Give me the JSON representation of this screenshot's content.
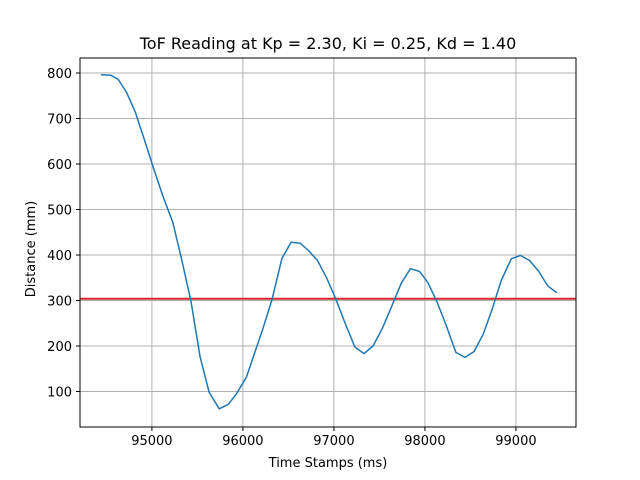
{
  "chart_data": {
    "type": "line",
    "title": "ToF Reading at Kp = 2.30, Ki = 0.25, Kd = 1.40",
    "xlabel": "Time Stamps (ms)",
    "ylabel": "Distance (mm)",
    "xlim": [
      94210,
      99660
    ],
    "ylim": [
      22,
      833
    ],
    "xticks": [
      95000,
      96000,
      97000,
      98000,
      99000
    ],
    "yticks": [
      100,
      200,
      300,
      400,
      500,
      600,
      700,
      800
    ],
    "grid": true,
    "series": [
      {
        "color": "#1f77b4",
        "x": [
          94440,
          94550,
          94630,
          94720,
          94820,
          94920,
          95020,
          95120,
          95230,
          95330,
          95430,
          95530,
          95630,
          95740,
          95840,
          95930,
          96040,
          96130,
          96220,
          96320,
          96430,
          96530,
          96630,
          96720,
          96820,
          96920,
          97020,
          97120,
          97230,
          97330,
          97430,
          97530,
          97630,
          97740,
          97840,
          97940,
          98030,
          98130,
          98230,
          98340,
          98440,
          98540,
          98640,
          98740,
          98840,
          98950,
          99050,
          99150,
          99250,
          99350,
          99450
        ],
        "y": [
          796,
          795,
          786,
          758,
          713,
          652,
          590,
          530,
          472,
          388,
          298,
          176,
          98,
          62,
          72,
          95,
          132,
          185,
          238,
          302,
          393,
          428,
          426,
          410,
          388,
          350,
          304,
          252,
          198,
          183,
          200,
          238,
          285,
          338,
          370,
          364,
          340,
          298,
          247,
          186,
          175,
          188,
          226,
          282,
          345,
          392,
          399,
          388,
          364,
          332,
          317
        ]
      }
    ],
    "reference_line": {
      "y": 304,
      "color": "#d62728"
    },
    "axis_color": "#000000",
    "grid_color": "#b0b0b0"
  }
}
